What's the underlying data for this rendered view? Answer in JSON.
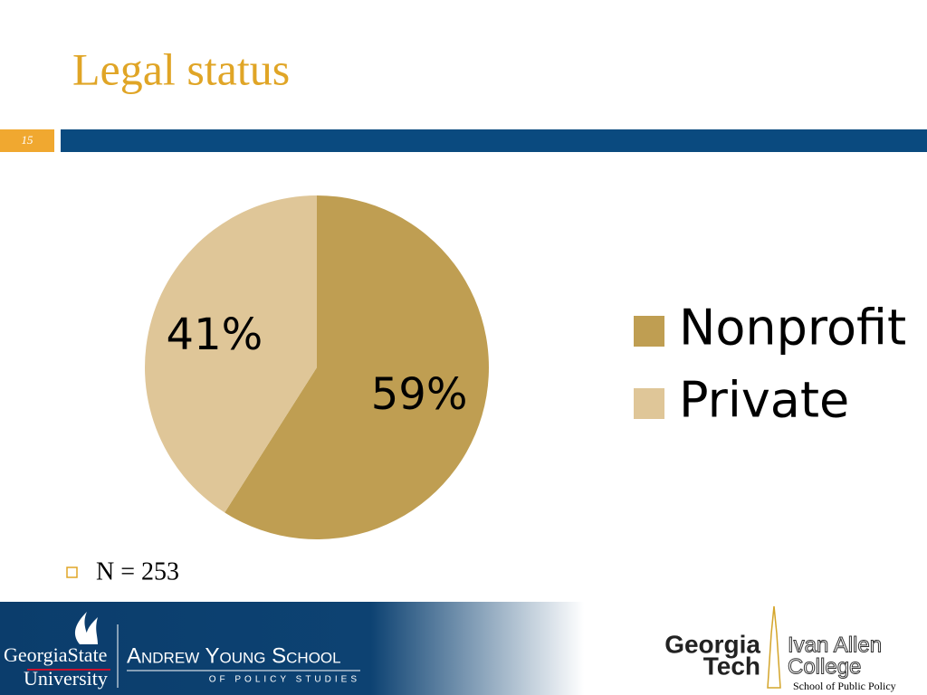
{
  "title": "Legal status",
  "slide_number": "15",
  "chart_data": {
    "type": "pie",
    "categories": [
      "Nonprofit",
      "Private"
    ],
    "values": [
      59,
      41
    ],
    "value_labels": [
      "59%",
      "41%"
    ],
    "colors": [
      "#bf9e52",
      "#dfc698"
    ],
    "legend": "right"
  },
  "bullets": [
    "N = 253"
  ],
  "footer": {
    "gsu_line1": "GeorgiaState",
    "gsu_line2": "University",
    "ays_line1": "Andrew Young School",
    "ays_line2": "OF POLICY STUDIES",
    "gt_line1": "Georgia",
    "gt_line2": "Tech",
    "iac_line1": "Ivan Allen",
    "iac_line2": "College",
    "iac_line3": "School of Public Policy"
  }
}
